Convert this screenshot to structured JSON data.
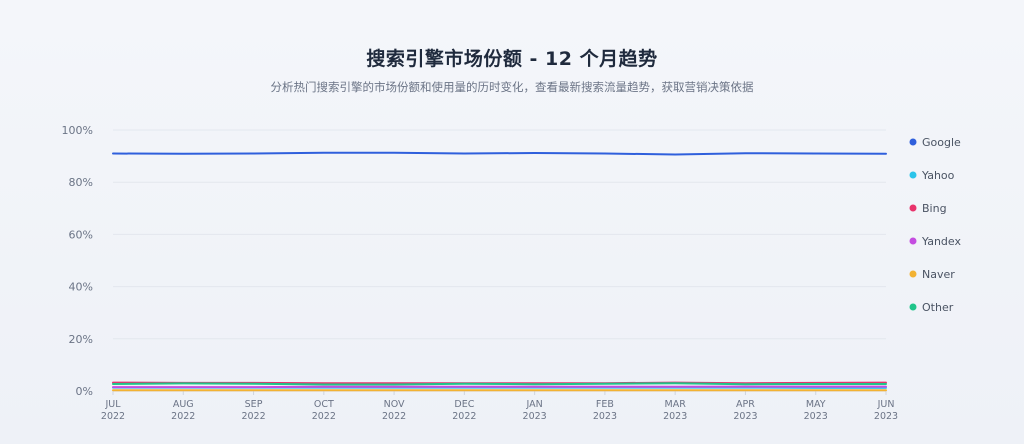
{
  "header": {
    "title": "搜索引擎市场份额 - 12 个月趋势",
    "subtitle": "分析热门搜索引擎的市场份额和使用量的历时变化，查看最新搜索流量趋势，获取营销决策依据"
  },
  "chart_data": {
    "type": "line",
    "title": "搜索引擎市场份额 - 12 个月趋势",
    "subtitle": "分析热门搜索引擎的市场份额和使用量的历时变化，查看最新搜索流量趋势，获取营销决策依据",
    "xlabel": "",
    "ylabel": "",
    "ylim": [
      0,
      100
    ],
    "yticks": [
      "0%",
      "20%",
      "40%",
      "60%",
      "80%",
      "100%"
    ],
    "yticks_values": [
      0,
      20,
      40,
      60,
      80,
      100
    ],
    "grid": true,
    "legend_position": "right",
    "x": [
      [
        "JUL",
        "2022"
      ],
      [
        "AUG",
        "2022"
      ],
      [
        "SEP",
        "2022"
      ],
      [
        "OCT",
        "2022"
      ],
      [
        "NOV",
        "2022"
      ],
      [
        "DEC",
        "2022"
      ],
      [
        "JAN",
        "2023"
      ],
      [
        "FEB",
        "2023"
      ],
      [
        "MAR",
        "2023"
      ],
      [
        "APR",
        "2023"
      ],
      [
        "MAY",
        "2023"
      ],
      [
        "JUN",
        "2023"
      ]
    ],
    "series": [
      {
        "name": "Google",
        "color": "#2f5fdc",
        "values": [
          91.0,
          90.9,
          91.0,
          91.3,
          91.3,
          91.0,
          91.2,
          91.0,
          90.6,
          91.1,
          91.0,
          90.9
        ]
      },
      {
        "name": "Yahoo",
        "color": "#2bc4ea",
        "values": [
          1.3,
          1.3,
          1.3,
          1.3,
          1.3,
          1.3,
          1.3,
          1.3,
          1.3,
          1.3,
          1.2,
          1.2
        ]
      },
      {
        "name": "Bing",
        "color": "#e8336b",
        "values": [
          3.2,
          3.1,
          3.1,
          3.0,
          3.0,
          3.0,
          3.0,
          3.0,
          3.2,
          3.0,
          3.1,
          3.2
        ]
      },
      {
        "name": "Yandex",
        "color": "#c44ce0",
        "values": [
          1.5,
          1.5,
          1.5,
          1.6,
          1.6,
          1.6,
          1.6,
          1.6,
          1.6,
          1.7,
          1.7,
          1.7
        ]
      },
      {
        "name": "Naver",
        "color": "#f2b233",
        "values": [
          0.3,
          0.3,
          0.3,
          0.3,
          0.3,
          0.3,
          0.3,
          0.3,
          0.3,
          0.3,
          0.3,
          0.3
        ]
      },
      {
        "name": "Other",
        "color": "#1fc48a",
        "values": [
          2.7,
          2.9,
          2.8,
          2.5,
          2.5,
          2.8,
          2.6,
          2.8,
          3.0,
          2.6,
          2.7,
          2.7
        ]
      }
    ]
  }
}
